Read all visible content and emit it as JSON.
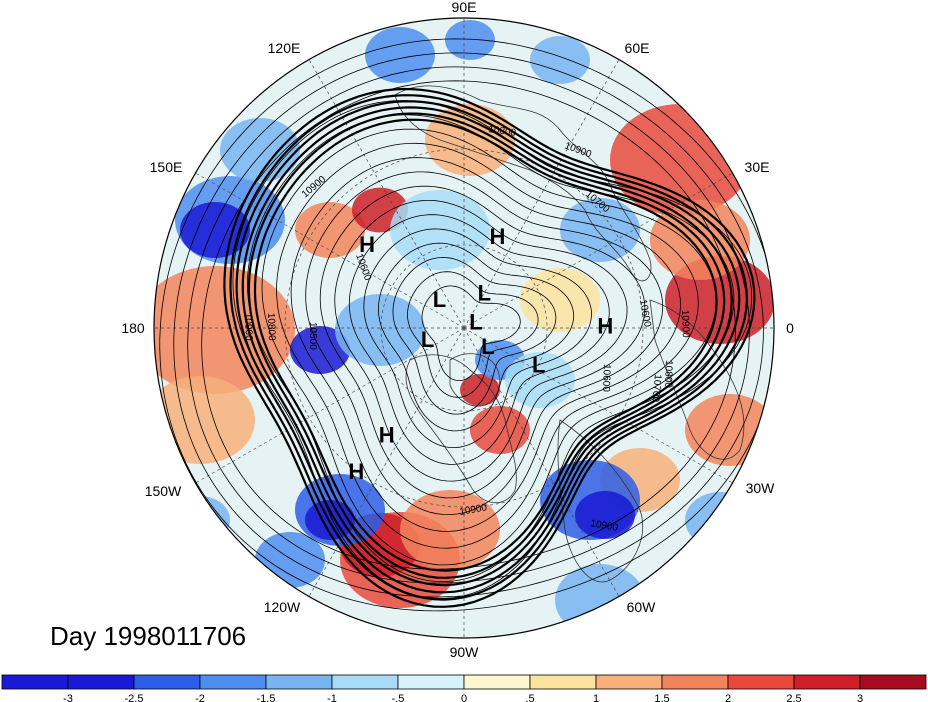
{
  "map": {
    "date_label": "Day 1998011706",
    "longitude_labels": [
      "90E",
      "60E",
      "30E",
      "0",
      "30W",
      "60W",
      "90W",
      "120W",
      "150W",
      "180",
      "150E",
      "120E"
    ],
    "pressure_centers": [
      {
        "type": "H",
        "lon": 70,
        "lat": 55
      },
      {
        "type": "H",
        "lon": 139,
        "lat": 45
      },
      {
        "type": "L",
        "lon": 60,
        "lat": 75
      },
      {
        "type": "L",
        "lon": 130,
        "lat": 76
      },
      {
        "type": "L",
        "lon": 28,
        "lat": 85
      },
      {
        "type": "L",
        "lon": -163,
        "lat": 76
      },
      {
        "type": "L",
        "lon": -37,
        "lat": 79
      },
      {
        "type": "L",
        "lon": -26,
        "lat": 60
      },
      {
        "type": "H",
        "lon": 1,
        "lat": 41
      },
      {
        "type": "H",
        "lon": -126,
        "lat": 44
      },
      {
        "type": "H",
        "lon": -127,
        "lat": 30
      }
    ],
    "contour_labels": [
      "10800",
      "10900",
      "10700",
      "10600",
      "10900",
      "10800",
      "10600",
      "10700",
      "10900",
      "10800",
      "10900",
      "10900",
      "10600",
      "10500",
      "10900"
    ],
    "colorbar": {
      "ticks": [
        "-3",
        "-2.5",
        "-2",
        "-1.5",
        "-1",
        "-.5",
        "0",
        ".5",
        "1",
        "1.5",
        "2",
        "2.5",
        "3"
      ],
      "colors": [
        "#1a1ad4",
        "#2d5ee6",
        "#4e8ef0",
        "#78b4f2",
        "#a8dcf6",
        "#d6f2fa",
        "#fbf6d0",
        "#fde3a0",
        "#f7b07a",
        "#f2845c",
        "#e8493c",
        "#cc1f28",
        "#a50c1e"
      ]
    }
  }
}
